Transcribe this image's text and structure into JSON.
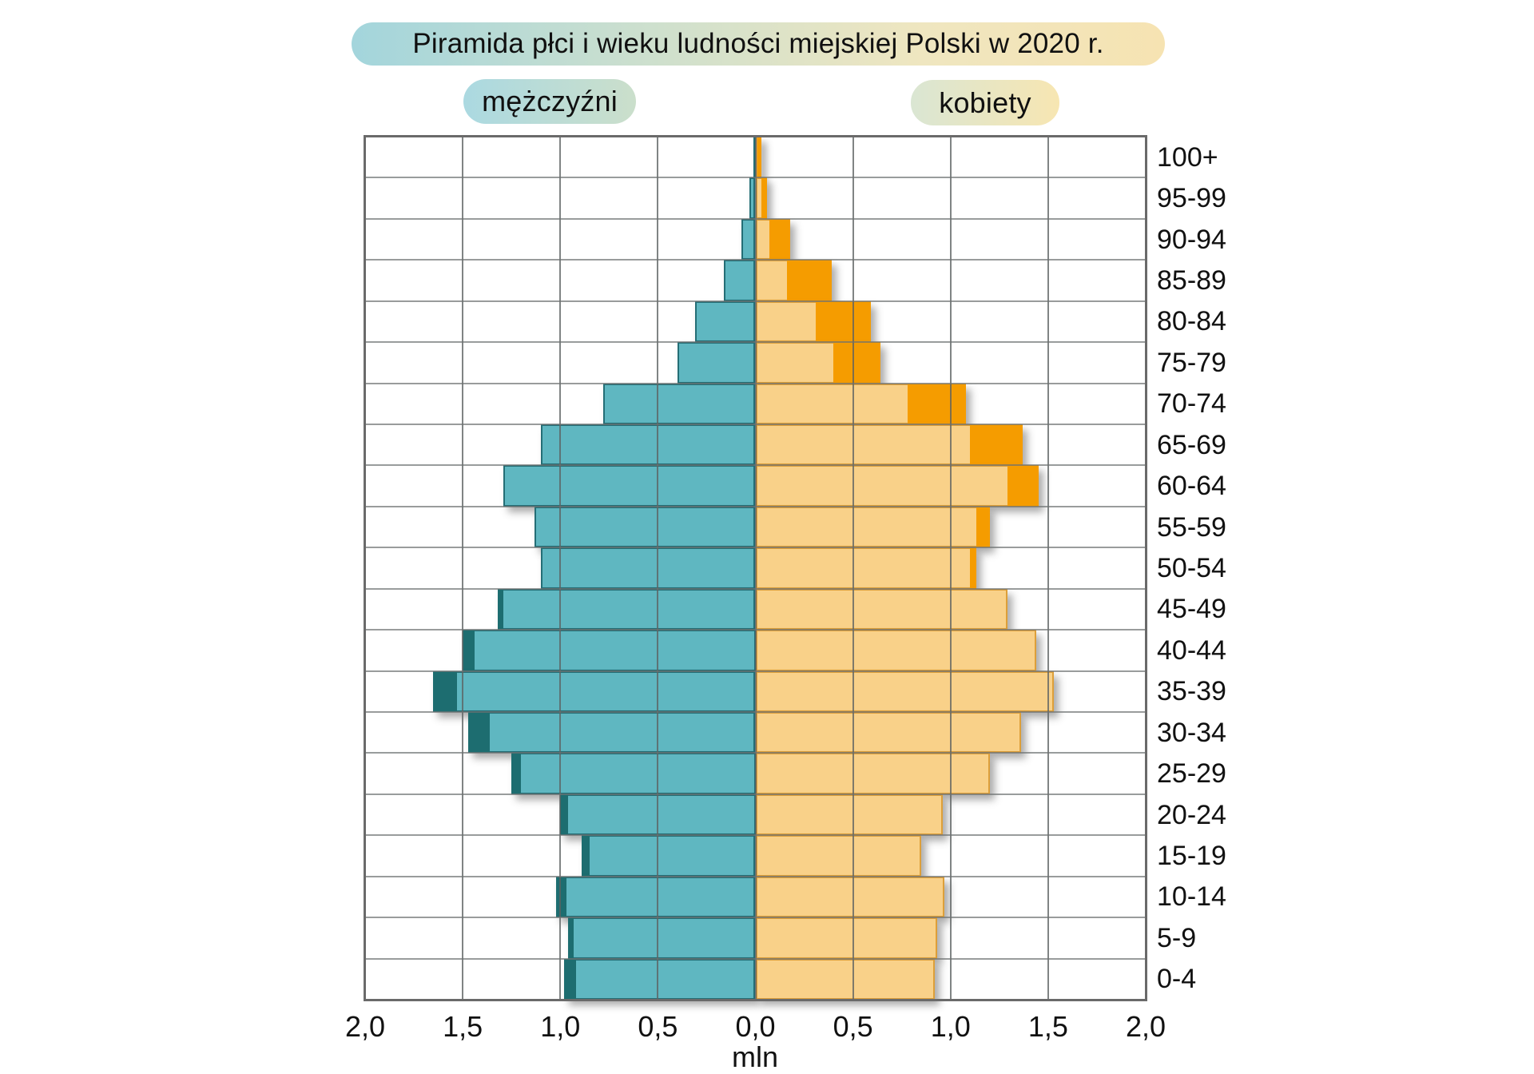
{
  "title": {
    "text": "Piramida płci i wieku ludności miejskiej Polski w 2020 r."
  },
  "legend": {
    "men": "mężczyźni",
    "women": "kobiety"
  },
  "axis": {
    "tick_labels": [
      "2,0",
      "1,5",
      "1,0",
      "0,5",
      "0,0",
      "0,5",
      "1,0",
      "1,5",
      "2,0"
    ],
    "unit": "mln",
    "max_each_side_mln": 2.0,
    "grid": "on"
  },
  "colors": {
    "men_light": "#5fb7c1",
    "men_surplus_dark": "#1d6d70",
    "women_light": "#f9d189",
    "women_surplus_orange": "#f59c00",
    "gridline": "#8b8b8b",
    "plot_border": "#6a6a6a",
    "title_pill_gradient": [
      "#a3d5dc",
      "#f6e3b2"
    ],
    "men_pill_gradient": [
      "#abd9e1",
      "#cbdfcb"
    ],
    "women_pill_gradient": [
      "#dae6d3",
      "#f7e6b2"
    ]
  },
  "chart_data": {
    "type": "bar",
    "subtype": "population-pyramid",
    "title": "Piramida płci i wieku ludności miejskiej Polski w 2020 r.",
    "unit": "mln",
    "orientation": "horizontal, men left / women right, ages top-down from oldest",
    "age_groups_top_to_bottom": [
      "100+",
      "95-99",
      "90-94",
      "85-89",
      "80-84",
      "75-79",
      "70-74",
      "65-69",
      "60-64",
      "55-59",
      "50-54",
      "45-49",
      "40-44",
      "35-39",
      "30-34",
      "25-29",
      "20-24",
      "15-19",
      "10-14",
      "5-9",
      "0-4"
    ],
    "series": [
      {
        "name": "mężczyźni",
        "values_mln": [
          0.01,
          0.03,
          0.07,
          0.16,
          0.31,
          0.4,
          0.78,
          1.1,
          1.29,
          1.13,
          1.1,
          1.32,
          1.5,
          1.65,
          1.47,
          1.25,
          1.0,
          0.89,
          1.02,
          0.96,
          0.98
        ]
      },
      {
        "name": "kobiety",
        "values_mln": [
          0.03,
          0.06,
          0.18,
          0.39,
          0.59,
          0.64,
          1.08,
          1.37,
          1.45,
          1.2,
          1.13,
          1.29,
          1.44,
          1.53,
          1.36,
          1.2,
          0.96,
          0.85,
          0.97,
          0.93,
          0.92
        ]
      }
    ],
    "surplus_encoding": "dark teal cap = male surplus over females; orange cap = female surplus over males; light segment equals the smaller sex count",
    "xlim_mln": [
      -2.0,
      2.0
    ]
  }
}
